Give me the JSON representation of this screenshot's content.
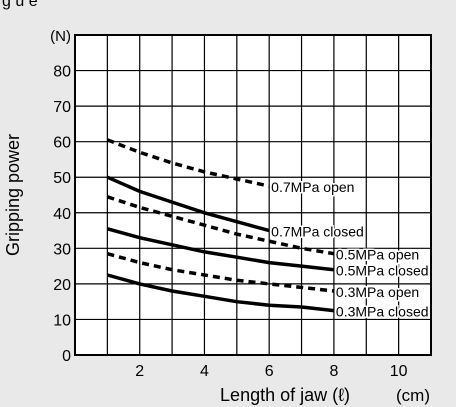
{
  "figure_label": "g  u  e",
  "chart_data": {
    "type": "line",
    "xlabel": "Length of jaw (ℓ)",
    "ylabel": "Gripping power",
    "x_unit": "(cm)",
    "y_unit": "(N)",
    "xlim": [
      0,
      11
    ],
    "ylim": [
      0,
      90
    ],
    "xticks": [
      2,
      4,
      6,
      8,
      10
    ],
    "yticks": [
      0,
      10,
      20,
      30,
      40,
      50,
      60,
      70,
      80
    ],
    "grid": true,
    "series": [
      {
        "name": "0.7MPa open",
        "style": "dashed",
        "x": [
          1,
          2,
          3,
          4,
          5,
          6
        ],
        "y": [
          60.5,
          57,
          54,
          51.5,
          49.5,
          47.5
        ]
      },
      {
        "name": "0.7MPa closed",
        "style": "solid",
        "x": [
          1,
          2,
          3,
          4,
          5,
          6
        ],
        "y": [
          50,
          46,
          43,
          40,
          37.5,
          35
        ]
      },
      {
        "name": "0.5MPa open",
        "style": "dashed",
        "x": [
          1,
          2,
          3,
          4,
          5,
          6,
          7,
          8
        ],
        "y": [
          44.5,
          41.5,
          39,
          36.5,
          34,
          32,
          30,
          28.5
        ]
      },
      {
        "name": "0.5MPa closed",
        "style": "solid",
        "x": [
          1,
          2,
          3,
          4,
          5,
          6,
          7,
          8
        ],
        "y": [
          35.5,
          33,
          31,
          29,
          27.5,
          26,
          25,
          24
        ]
      },
      {
        "name": "0.3MPa open",
        "style": "dashed",
        "x": [
          1,
          2,
          3,
          4,
          5,
          6,
          7,
          8
        ],
        "y": [
          28.5,
          26,
          24,
          22.5,
          21,
          20,
          19,
          18
        ]
      },
      {
        "name": "0.3MPa closed",
        "style": "solid",
        "x": [
          1,
          2,
          3,
          4,
          5,
          6,
          7,
          8
        ],
        "y": [
          22.5,
          20,
          18,
          16.5,
          15,
          14,
          13.5,
          12.5
        ]
      }
    ],
    "colors": {
      "line": "#000000",
      "grid": "#000000",
      "background": "#e9e9e9"
    }
  }
}
